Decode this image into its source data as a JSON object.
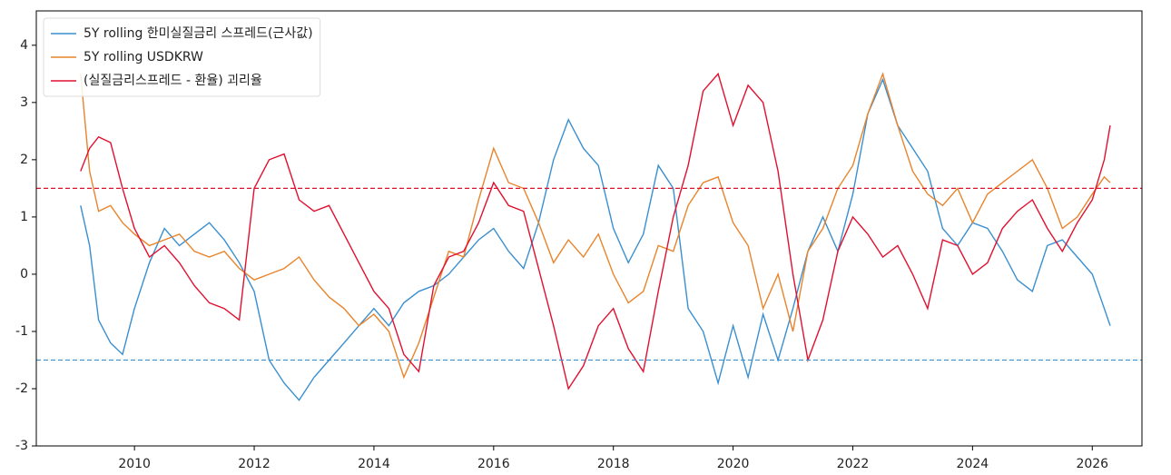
{
  "chart_data": {
    "type": "line",
    "x": [
      2009.1,
      2009.25,
      2009.4,
      2009.6,
      2009.8,
      2010.0,
      2010.25,
      2010.5,
      2010.75,
      2011.0,
      2011.25,
      2011.5,
      2011.75,
      2012.0,
      2012.25,
      2012.5,
      2012.75,
      2013.0,
      2013.25,
      2013.5,
      2013.75,
      2014.0,
      2014.25,
      2014.5,
      2014.75,
      2015.0,
      2015.25,
      2015.5,
      2015.75,
      2016.0,
      2016.25,
      2016.5,
      2016.75,
      2017.0,
      2017.25,
      2017.5,
      2017.75,
      2018.0,
      2018.25,
      2018.5,
      2018.75,
      2019.0,
      2019.25,
      2019.5,
      2019.75,
      2020.0,
      2020.25,
      2020.5,
      2020.75,
      2021.0,
      2021.25,
      2021.5,
      2021.75,
      2022.0,
      2022.25,
      2022.5,
      2022.75,
      2023.0,
      2023.25,
      2023.5,
      2023.75,
      2024.0,
      2024.25,
      2024.5,
      2024.75,
      2025.0,
      2025.25,
      2025.5,
      2025.75,
      2026.0,
      2026.2,
      2026.3
    ],
    "series": [
      {
        "name": "5Y rolling 한미실질금리 스프레드(근사값)",
        "color": "#3a8fd0",
        "values": [
          1.2,
          0.5,
          -0.8,
          -1.2,
          -1.4,
          -0.6,
          0.2,
          0.8,
          0.5,
          0.7,
          0.9,
          0.6,
          0.2,
          -0.3,
          -1.5,
          -1.9,
          -2.2,
          -1.8,
          -1.5,
          -1.2,
          -0.9,
          -0.6,
          -0.9,
          -0.5,
          -0.3,
          -0.2,
          0.0,
          0.3,
          0.6,
          0.8,
          0.4,
          0.1,
          0.9,
          2.0,
          2.7,
          2.2,
          1.9,
          0.8,
          0.2,
          0.7,
          1.9,
          1.5,
          -0.6,
          -1.0,
          -1.9,
          -0.9,
          -1.8,
          -0.7,
          -1.5,
          -0.6,
          0.4,
          1.0,
          0.4,
          1.4,
          2.8,
          3.4,
          2.6,
          2.2,
          1.8,
          0.8,
          0.5,
          0.9,
          0.8,
          0.4,
          -0.1,
          -0.3,
          0.5,
          0.6,
          0.3,
          0.0,
          -0.6,
          -0.9
        ]
      },
      {
        "name": "5Y rolling USDKRW",
        "color": "#e8842c",
        "values": [
          3.5,
          1.8,
          1.1,
          1.2,
          0.9,
          0.7,
          0.5,
          0.6,
          0.7,
          0.4,
          0.3,
          0.4,
          0.1,
          -0.1,
          0.0,
          0.1,
          0.3,
          -0.1,
          -0.4,
          -0.6,
          -0.9,
          -0.7,
          -1.0,
          -1.8,
          -1.2,
          -0.4,
          0.4,
          0.3,
          1.3,
          2.2,
          1.6,
          1.5,
          0.9,
          0.2,
          0.6,
          0.3,
          0.7,
          0.0,
          -0.5,
          -0.3,
          0.5,
          0.4,
          1.2,
          1.6,
          1.7,
          0.9,
          0.5,
          -0.6,
          0.0,
          -1.0,
          0.4,
          0.8,
          1.5,
          1.9,
          2.8,
          3.5,
          2.6,
          1.8,
          1.4,
          1.2,
          1.5,
          0.9,
          1.4,
          1.6,
          1.8,
          2.0,
          1.5,
          0.8,
          1.0,
          1.4,
          1.7,
          1.6
        ]
      },
      {
        "name": "(실질금리스프레드 - 환율) 괴리율",
        "color": "#e0102f",
        "values": [
          1.8,
          2.2,
          2.4,
          2.3,
          1.5,
          0.8,
          0.3,
          0.5,
          0.2,
          -0.2,
          -0.5,
          -0.6,
          -0.8,
          1.5,
          2.0,
          2.1,
          1.3,
          1.1,
          1.2,
          0.7,
          0.2,
          -0.3,
          -0.6,
          -1.4,
          -1.7,
          -0.2,
          0.3,
          0.4,
          0.9,
          1.6,
          1.2,
          1.1,
          0.1,
          -0.9,
          -2.0,
          -1.6,
          -0.9,
          -0.6,
          -1.3,
          -1.7,
          -0.3,
          1.0,
          1.9,
          3.2,
          3.5,
          2.6,
          3.3,
          3.0,
          1.8,
          0.0,
          -1.5,
          -0.8,
          0.4,
          1.0,
          0.7,
          0.3,
          0.5,
          0.0,
          -0.6,
          0.6,
          0.5,
          0.0,
          0.2,
          0.8,
          1.1,
          1.3,
          0.8,
          0.4,
          0.9,
          1.3,
          2.0,
          2.6
        ]
      }
    ],
    "hlines": [
      {
        "value": 1.5,
        "color": "#e0102f"
      },
      {
        "value": -1.5,
        "color": "#3a8fd0"
      }
    ],
    "xlim": [
      2008.36,
      2026.83
    ],
    "xticks": [
      2010,
      2012,
      2014,
      2016,
      2018,
      2020,
      2022,
      2024,
      2026
    ],
    "ylim": [
      -3,
      4.6
    ],
    "yticks": [
      -3,
      -2,
      -1,
      0,
      1,
      2,
      3,
      4
    ],
    "legend": "upper-left"
  }
}
